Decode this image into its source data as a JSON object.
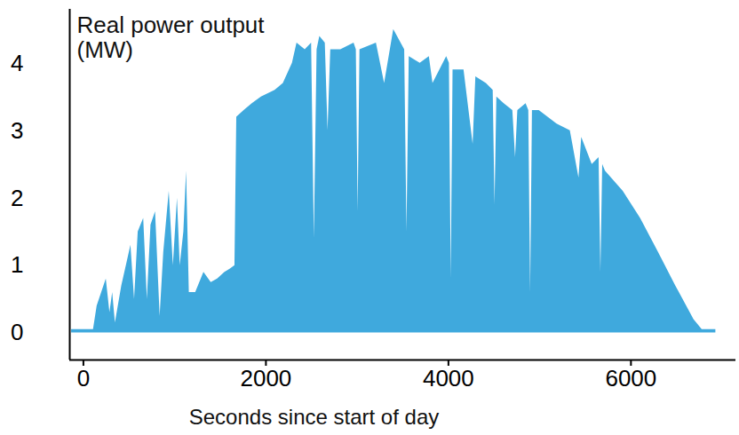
{
  "chart_data": {
    "type": "area",
    "y_label": "Real power output (MW)",
    "x_label": "Seconds since start of day",
    "color": "#3fa9dd",
    "x": [
      -130,
      110,
      150,
      200,
      250,
      290,
      320,
      350,
      420,
      470,
      520,
      560,
      600,
      660,
      700,
      740,
      790,
      840,
      880,
      940,
      985,
      1030,
      1060,
      1100,
      1130,
      1160,
      1230,
      1320,
      1400,
      1470,
      1550,
      1610,
      1660,
      1680,
      1760,
      1850,
      1950,
      2100,
      2190,
      2290,
      2340,
      2430,
      2500,
      2530,
      2560,
      2590,
      2650,
      2680,
      2710,
      2820,
      2965,
      2990,
      3010,
      3030,
      3210,
      3300,
      3400,
      3520,
      3545,
      3570,
      3690,
      3790,
      3830,
      3980,
      4010,
      4030,
      4050,
      4170,
      4270,
      4300,
      4415,
      4490,
      4510,
      4530,
      4610,
      4705,
      4735,
      4760,
      4850,
      4880,
      4900,
      4920,
      4995,
      5190,
      5335,
      5430,
      5460,
      5575,
      5650,
      5670,
      5690,
      5720,
      5915,
      6105,
      6300,
      6490,
      6690,
      6780,
      6930
    ],
    "values": [
      0.05,
      0.05,
      0.4,
      0.6,
      0.8,
      0.3,
      0.6,
      0.15,
      0.7,
      1.0,
      1.3,
      0.5,
      1.5,
      1.7,
      0.5,
      1.6,
      1.8,
      0.25,
      1.2,
      2.1,
      1.0,
      2.0,
      1.0,
      1.5,
      2.4,
      0.6,
      0.6,
      0.9,
      0.75,
      0.8,
      0.9,
      0.95,
      1.0,
      3.2,
      3.3,
      3.4,
      3.5,
      3.6,
      3.7,
      4.0,
      4.3,
      4.2,
      4.3,
      1.4,
      4.2,
      4.4,
      4.3,
      3.0,
      4.2,
      4.2,
      4.3,
      4.2,
      1.8,
      4.2,
      4.3,
      3.7,
      4.5,
      4.2,
      1.5,
      4.1,
      4.0,
      4.1,
      3.7,
      4.1,
      4.0,
      0.8,
      3.9,
      3.9,
      2.8,
      3.8,
      3.7,
      3.6,
      1.9,
      3.5,
      3.4,
      3.3,
      2.6,
      3.3,
      3.4,
      3.3,
      0.6,
      3.3,
      3.3,
      3.1,
      3.0,
      2.3,
      2.9,
      2.5,
      2.6,
      0.9,
      2.5,
      2.4,
      2.1,
      1.7,
      1.2,
      0.7,
      0.2,
      0.05,
      0.05
    ],
    "xlim": [
      -150,
      7150
    ],
    "ylim": [
      -0.4,
      4.8
    ],
    "xticks": [
      0,
      2000,
      4000,
      6000
    ],
    "yticks": [
      0,
      1,
      2,
      3,
      4
    ],
    "grid": false
  }
}
